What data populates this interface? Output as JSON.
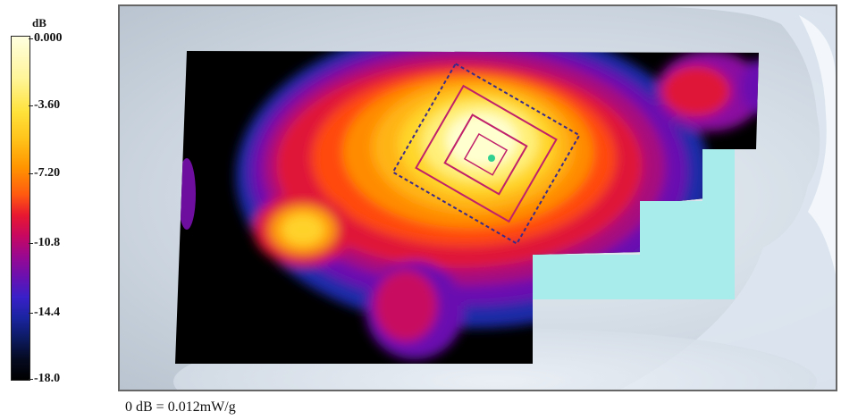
{
  "colorbar": {
    "unit": "dB",
    "ticks": [
      "0.000",
      "-3.60",
      "-7.20",
      "-10.8",
      "-14.4",
      "-18.0"
    ]
  },
  "caption": "0 dB = 0.012mW/g"
}
